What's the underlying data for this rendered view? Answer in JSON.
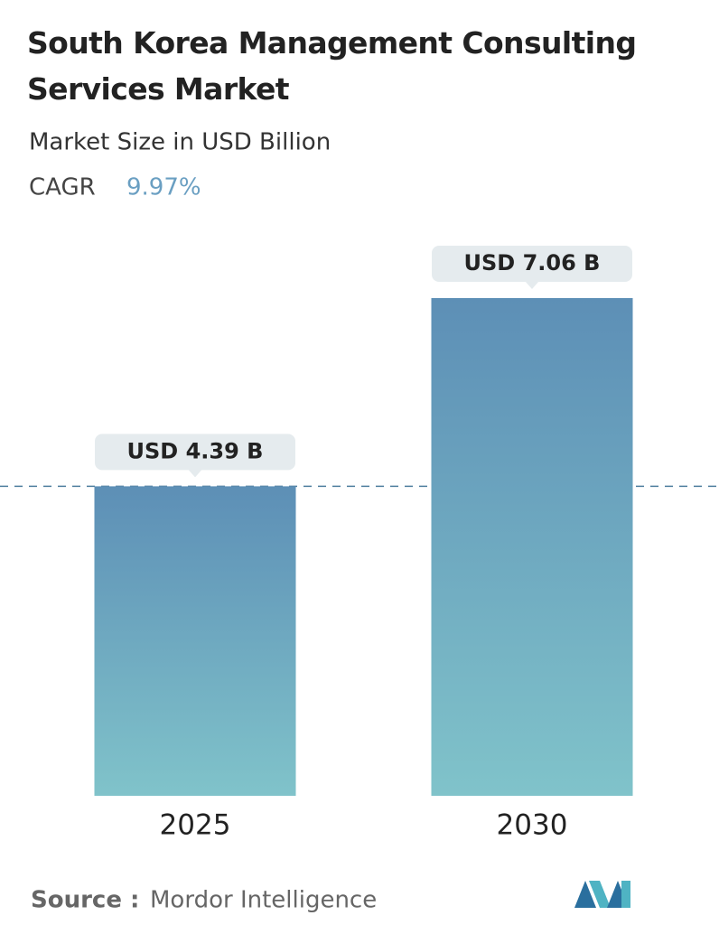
{
  "chart_data": {
    "type": "bar",
    "title": "South Korea Management Consulting Services Market",
    "subtitle": "Market Size in USD Billion",
    "cagr": {
      "label": "CAGR",
      "value": "9.97%"
    },
    "categories": [
      "2025",
      "2030"
    ],
    "values": [
      4.39,
      7.06
    ],
    "value_labels": [
      "USD 4.39 B",
      "USD 7.06 B"
    ],
    "gradient": [
      "#5d8fb6",
      "#80c3ca"
    ],
    "reference_line": true,
    "source": {
      "label": "Source :",
      "name": "Mordor Intelligence"
    }
  }
}
